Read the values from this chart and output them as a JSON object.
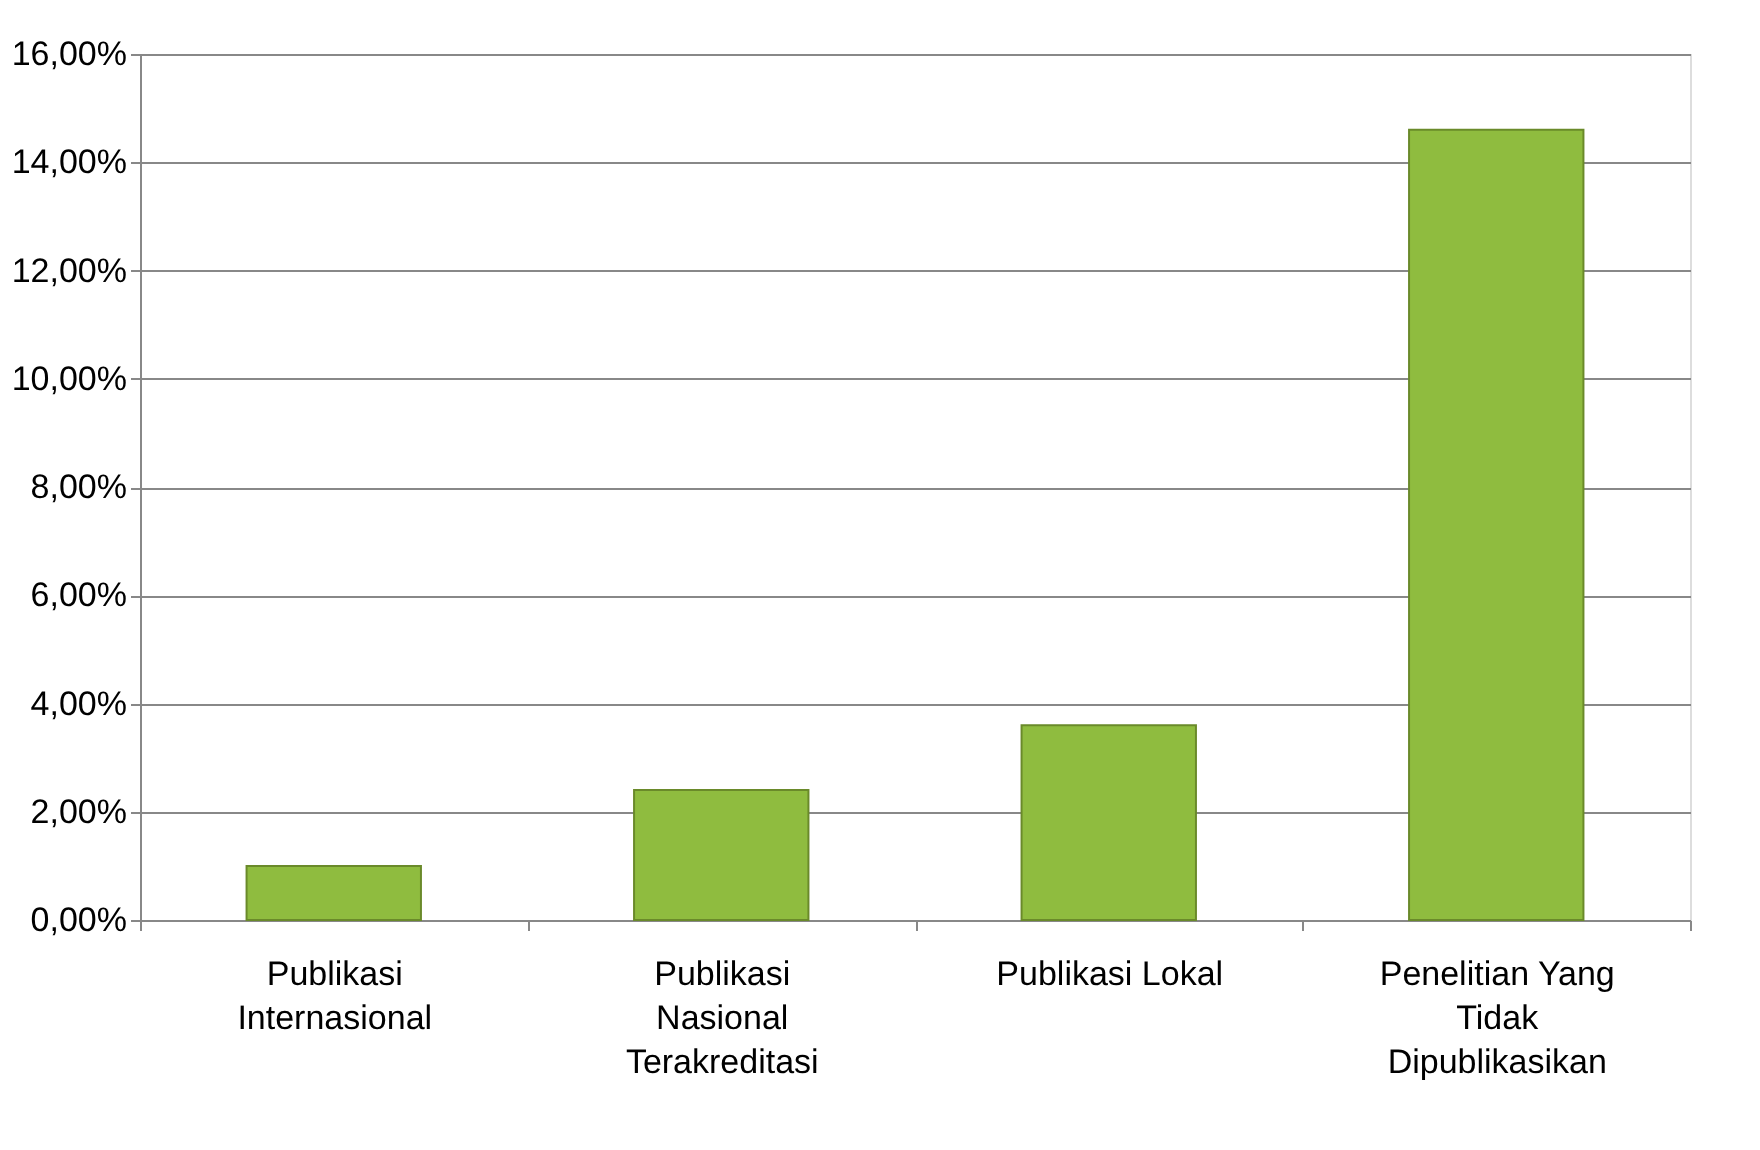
{
  "chart_data": {
    "type": "bar",
    "categories": [
      "Publikasi Internasional",
      "Publikasi Nasional Terakreditasi",
      "Publikasi Lokal",
      "Penelitian Yang Tidak Dipublikasikan"
    ],
    "values": [
      1.0,
      2.4,
      3.6,
      14.6
    ],
    "color": "#8fbc3f",
    "ylim": [
      0,
      16
    ],
    "yticks": [
      {
        "value": 0,
        "label": "0,00%"
      },
      {
        "value": 2,
        "label": "2,00%"
      },
      {
        "value": 4,
        "label": "4,00%"
      },
      {
        "value": 6,
        "label": "6,00%"
      },
      {
        "value": 8,
        "label": "8,00%"
      },
      {
        "value": 10,
        "label": "10,00%"
      },
      {
        "value": 12,
        "label": "12,00%"
      },
      {
        "value": 14,
        "label": "14,00%"
      },
      {
        "value": 16,
        "label": "16,00%"
      }
    ],
    "grid": "y"
  }
}
